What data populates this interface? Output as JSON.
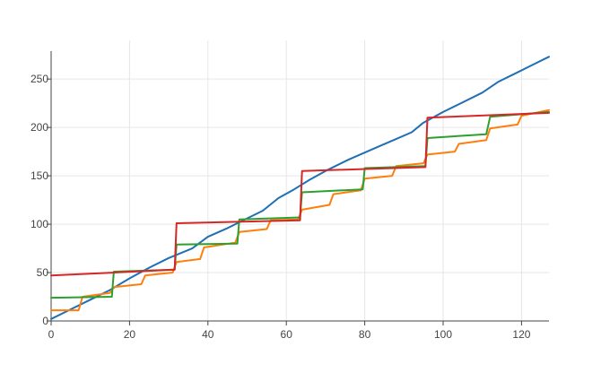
{
  "chart_data": {
    "type": "line",
    "title": "",
    "xlabel": "",
    "ylabel": "",
    "xlim": [
      0,
      127
    ],
    "ylim": [
      0,
      290
    ],
    "grid": true,
    "legend": "none",
    "x_ticks": [
      0,
      20,
      40,
      60,
      80,
      100,
      120
    ],
    "y_ticks": [
      0,
      50,
      100,
      150,
      200,
      250
    ],
    "series": [
      {
        "color": "#1f6fb4",
        "x": [
          0,
          5,
          10,
          15,
          20,
          25,
          30,
          36,
          40,
          45,
          50,
          54,
          58,
          62,
          66,
          70,
          76,
          80,
          84,
          88,
          92,
          95,
          100,
          105,
          110,
          114,
          118,
          122,
          127
        ],
        "y": [
          2,
          12,
          22,
          32,
          44,
          55,
          65,
          75,
          87,
          96,
          106,
          114,
          127,
          136,
          146,
          155,
          167,
          174,
          181,
          188,
          195,
          205,
          216,
          226,
          236,
          247,
          255,
          263,
          273
        ]
      },
      {
        "color": "#ff7f0e",
        "x": [
          0,
          7,
          8,
          15,
          16,
          23,
          24,
          31,
          32,
          38,
          39,
          47,
          48,
          55,
          56,
          63,
          64,
          71,
          72,
          79,
          80,
          87,
          88,
          95,
          96,
          103,
          104,
          111,
          112,
          119,
          120,
          127
        ],
        "y": [
          11,
          11,
          25,
          29,
          35,
          38,
          47,
          50,
          61,
          64,
          76,
          81,
          92,
          95,
          104,
          105,
          115,
          120,
          131,
          135,
          147,
          150,
          160,
          163,
          172,
          175,
          183,
          187,
          199,
          203,
          212,
          218
        ]
      },
      {
        "color": "#2ca02c",
        "x": [
          0,
          15.5,
          16,
          31.5,
          32,
          47.5,
          48,
          63.5,
          64,
          79.5,
          80,
          95.5,
          96,
          111,
          112,
          127
        ],
        "y": [
          24,
          25,
          51,
          53,
          79,
          80,
          105,
          107,
          133,
          136,
          158,
          160,
          189,
          193,
          211,
          216
        ]
      },
      {
        "color": "#d62728",
        "x": [
          0,
          31.5,
          32,
          63.5,
          64,
          95.5,
          96,
          127
        ],
        "y": [
          47,
          53,
          101,
          104,
          155,
          159,
          210,
          215
        ]
      }
    ]
  }
}
